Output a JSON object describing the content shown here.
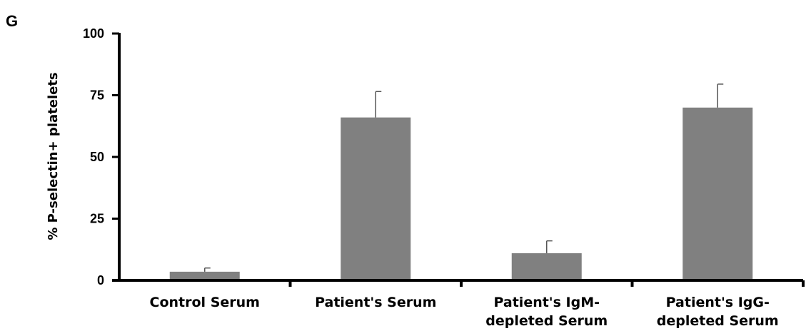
{
  "panel_label": "G",
  "chart_data": {
    "type": "bar",
    "categories": [
      [
        "Control Serum"
      ],
      [
        "Patient's Serum"
      ],
      [
        "Patient's IgM-",
        "depleted Serum"
      ],
      [
        "Patient's IgG-",
        "depleted Serum"
      ]
    ],
    "values": [
      3.5,
      66,
      11,
      70
    ],
    "error_bars": [
      1.5,
      10.5,
      5,
      9.5
    ],
    "ylabel": "% P-selectin+ platelets",
    "xlabel": "",
    "ylim": [
      0,
      100
    ],
    "yticks": [
      0,
      25,
      50,
      75,
      100
    ],
    "bar_color": "#808080",
    "grid": false,
    "legend": "none"
  }
}
